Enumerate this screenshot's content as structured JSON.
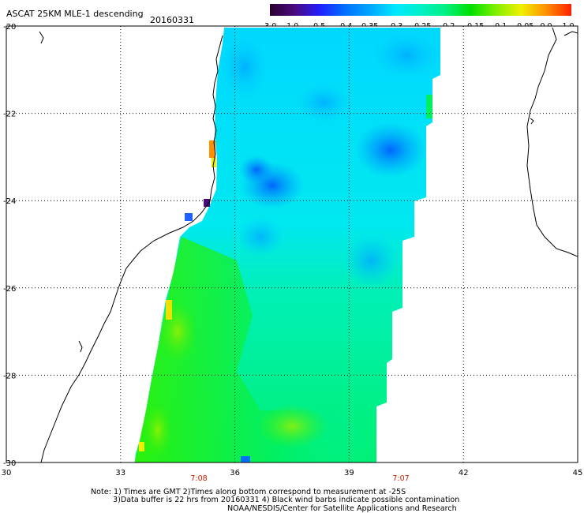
{
  "header": {
    "title": "ASCAT 25KM MLE-1 descending",
    "date": "20160331"
  },
  "colorbar": {
    "labels": [
      "-3.0",
      "-1.0",
      "-0.5",
      "-0.4",
      "-0.35",
      "-0.3",
      "-0.25",
      "-0.2",
      "-0.15",
      "-0.1",
      "-0.05",
      "0.0",
      "1.0"
    ],
    "colors": [
      "#2a0030",
      "#4a0a80",
      "#2020ff",
      "#0070ff",
      "#00a8ff",
      "#00e8ff",
      "#00f0c8",
      "#00f080",
      "#00e000",
      "#80f000",
      "#f0f000",
      "#ff9000",
      "#ff2000"
    ]
  },
  "map": {
    "lat_labels": [
      "-20",
      "-22",
      "-24",
      "-26",
      "-28",
      "-30"
    ],
    "lon_labels": [
      "30",
      "33",
      "36",
      "39",
      "42",
      "45"
    ],
    "lat_range": [
      -30,
      -20
    ],
    "lon_range": [
      30,
      45
    ],
    "time_labels": [
      "7:08",
      "7:07"
    ],
    "time_color": "#c82000"
  },
  "footer": {
    "line1": "Note: 1) Times are GMT 2)Times along bottom correspond to measurement at -25S",
    "line2": "3)Data buffer is 22 hrs from 20160331 4) Black wind barbs indicate possible contamination",
    "line3": "NOAA/NESDIS/Center for Satellite Applications and Research"
  }
}
